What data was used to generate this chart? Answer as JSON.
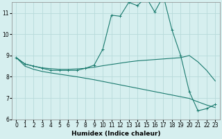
{
  "xlabel": "Humidex (Indice chaleur)",
  "background_color": "#d6efef",
  "line_color": "#1a7a6e",
  "grid_color": "#b8dada",
  "xlim": [
    -0.5,
    23.5
  ],
  "ylim": [
    6,
    11.5
  ],
  "yticks": [
    6,
    7,
    8,
    9,
    10,
    11
  ],
  "xticks": [
    0,
    1,
    2,
    3,
    4,
    5,
    6,
    7,
    8,
    9,
    10,
    11,
    12,
    13,
    14,
    15,
    16,
    17,
    18,
    19,
    20,
    21,
    22,
    23
  ],
  "series": [
    {
      "x": [
        0,
        1,
        2,
        3,
        4,
        5,
        6,
        7,
        8,
        9,
        10,
        11,
        12,
        13,
        14,
        15,
        16,
        17,
        18,
        19,
        20,
        21,
        22,
        23
      ],
      "y": [
        8.9,
        8.6,
        8.5,
        8.4,
        8.3,
        8.3,
        8.3,
        8.3,
        8.4,
        8.55,
        9.3,
        10.9,
        10.85,
        11.5,
        11.35,
        11.75,
        11.05,
        11.8,
        10.2,
        9.0,
        7.3,
        6.4,
        6.5,
        6.7
      ],
      "marker": "+"
    },
    {
      "x": [
        0,
        1,
        2,
        3,
        4,
        5,
        6,
        7,
        8,
        9,
        10,
        11,
        12,
        13,
        14,
        15,
        16,
        17,
        18,
        19,
        20,
        21,
        22,
        23
      ],
      "y": [
        8.9,
        8.6,
        8.5,
        8.42,
        8.38,
        8.35,
        8.35,
        8.37,
        8.4,
        8.45,
        8.52,
        8.58,
        8.64,
        8.7,
        8.75,
        8.78,
        8.81,
        8.84,
        8.87,
        8.9,
        9.0,
        8.7,
        8.3,
        7.8
      ],
      "marker": null
    },
    {
      "x": [
        0,
        1,
        2,
        3,
        4,
        5,
        6,
        7,
        8,
        9,
        10,
        11,
        12,
        13,
        14,
        15,
        16,
        17,
        18,
        19,
        20,
        21,
        22,
        23
      ],
      "y": [
        8.9,
        8.5,
        8.35,
        8.25,
        8.18,
        8.12,
        8.06,
        8.0,
        7.93,
        7.86,
        7.78,
        7.7,
        7.62,
        7.54,
        7.46,
        7.38,
        7.3,
        7.22,
        7.14,
        7.06,
        6.98,
        6.82,
        6.67,
        6.55
      ],
      "marker": null
    }
  ]
}
